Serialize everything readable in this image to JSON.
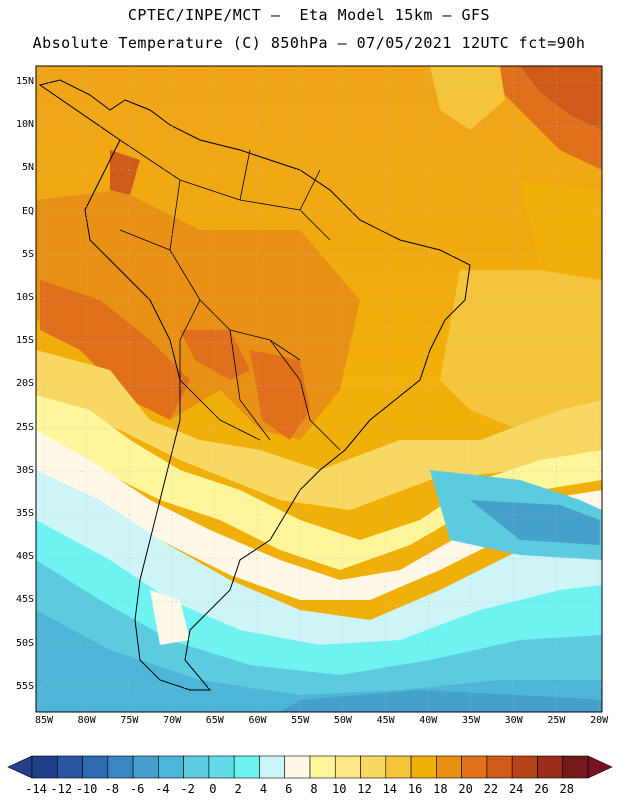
{
  "header": {
    "title_line1": "CPTEC/INPE/MCT –  Eta Model 15km – GFS",
    "title_line2": "Absolute Temperature (C) 850hPa – 07/05/2021 12UTC fct=90h"
  },
  "map": {
    "region": "South America",
    "lat_labels": [
      "15N",
      "10N",
      "5N",
      "EQ",
      "5S",
      "10S",
      "15S",
      "20S",
      "25S",
      "30S",
      "35S",
      "40S",
      "45S",
      "50S",
      "55S"
    ],
    "lon_labels": [
      "85W",
      "80W",
      "75W",
      "70W",
      "65W",
      "60W",
      "55W",
      "50W",
      "45W",
      "40W",
      "35W",
      "30W",
      "25W",
      "20W"
    ]
  },
  "colorbar": {
    "labels": [
      "-14",
      "-12",
      "-10",
      "-8",
      "-6",
      "-4",
      "-2",
      "0",
      "2",
      "4",
      "6",
      "8",
      "10",
      "12",
      "14",
      "16",
      "18",
      "20",
      "22",
      "24",
      "26",
      "28"
    ],
    "low_arrow_color": "#2a3c8c",
    "high_arrow_color": "#7a1022",
    "colors": [
      "#223f8a",
      "#2a55a0",
      "#2f6db2",
      "#3a86c0",
      "#45a0cc",
      "#4cb5d8",
      "#5ccbe0",
      "#62dcea",
      "#6ef2f2",
      "#cdf5f8",
      "#fff8e6",
      "#fff59a",
      "#fbe783",
      "#f8d763",
      "#f4c43a",
      "#f1b009",
      "#e89014",
      "#e0701c",
      "#cf5a1a",
      "#b8431a",
      "#9a2c18",
      "#731a1a"
    ]
  }
}
